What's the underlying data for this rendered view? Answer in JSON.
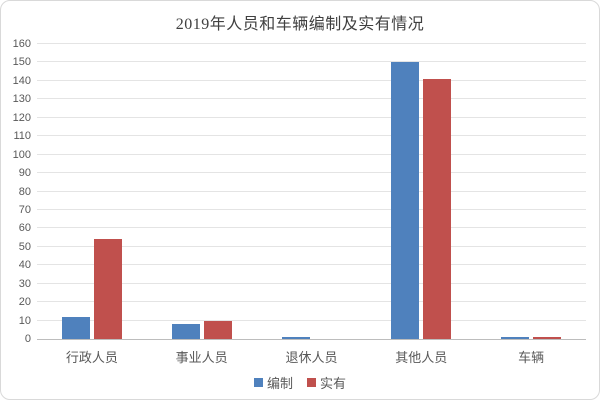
{
  "chart_data": {
    "type": "bar",
    "title": "2019年人员和车辆编制及实有情况",
    "categories": [
      "行政人员",
      "事业人员",
      "退休人员",
      "其他人员",
      "车辆"
    ],
    "series": [
      {
        "name": "编制",
        "color": "#4F81BD",
        "values": [
          12,
          8,
          1,
          150,
          1
        ]
      },
      {
        "name": "实有",
        "color": "#C0504D",
        "values": [
          54,
          10,
          0,
          141,
          1
        ]
      }
    ],
    "xlabel": "",
    "ylabel": "",
    "ylim": [
      0,
      160
    ],
    "ytick_step": 10,
    "grid": true,
    "legend_position": "bottom"
  },
  "colors": {
    "gridline": "#e4e4e4",
    "axis_line": "#bdbdbd",
    "tick_text": "#595959",
    "title_text": "#404040",
    "frame_border": "#d9d9d9",
    "background": "#ffffff"
  }
}
